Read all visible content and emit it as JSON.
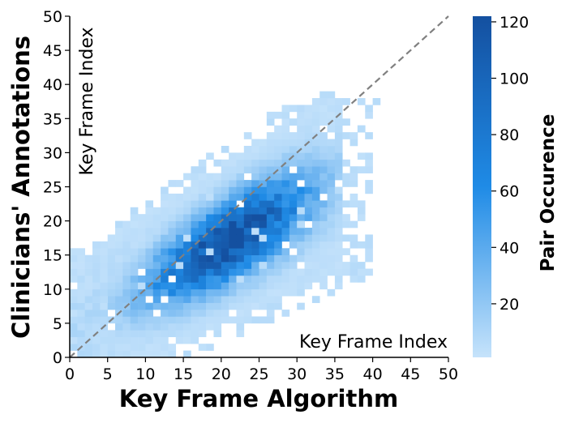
{
  "chart_data": {
    "type": "heatmap",
    "xlabel": "Key Frame Algorithm",
    "ylabel": "Clinicians' Annotations",
    "inner_xlabel": "Key Frame Index",
    "inner_ylabel": "Key Frame Index",
    "xlim": [
      0,
      50
    ],
    "ylim": [
      0,
      50
    ],
    "x_ticks": [
      0,
      5,
      10,
      15,
      20,
      25,
      30,
      35,
      40,
      45,
      50
    ],
    "y_ticks": [
      0,
      5,
      10,
      15,
      20,
      25,
      30,
      35,
      40,
      45,
      50
    ],
    "bin_size": 1,
    "reference_line": {
      "from": [
        0,
        0
      ],
      "to": [
        50,
        50
      ],
      "style": "dashed",
      "color": "#808080"
    },
    "colorbar": {
      "title": "Pair Occurence",
      "min": 1,
      "max": 122,
      "ticks": [
        20,
        40,
        60,
        80,
        100,
        120
      ],
      "color_low": "#c6e3fb",
      "color_mid": "#1f8be6",
      "color_high": "#1450a0"
    },
    "density_model": {
      "ridge_intercept": 4.0,
      "ridge_slope": 0.62,
      "peak": [
        21,
        15
      ],
      "peak_count": 122,
      "x_range": [
        0,
        41
      ],
      "y_range": [
        0,
        38
      ]
    },
    "sparse_cells": [
      [
        33,
        38
      ],
      [
        34,
        38
      ],
      [
        40,
        37
      ],
      [
        38,
        33
      ],
      [
        37,
        31
      ],
      [
        31,
        33
      ],
      [
        29,
        34
      ],
      [
        35,
        24
      ],
      [
        30,
        19
      ],
      [
        30,
        21
      ],
      [
        25,
        13
      ],
      [
        4,
        8
      ]
    ]
  }
}
